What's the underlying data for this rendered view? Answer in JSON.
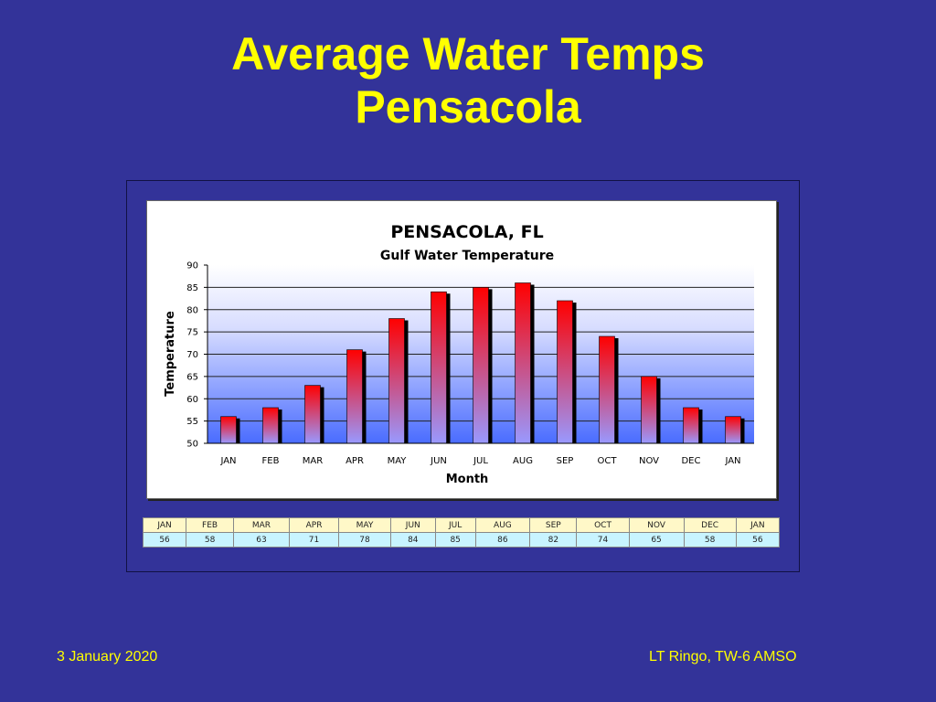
{
  "slide": {
    "title_line1": "Average Water Temps",
    "title_line2": "Pensacola",
    "footer_date": "3 January 2020",
    "footer_author": "LT Ringo, TW-6 AMSO"
  },
  "colors": {
    "background": "#333399",
    "title": "#ffff00",
    "bar_top": "#ff0000",
    "bar_bottom": "#9999ff",
    "table_header": "#fff8c8",
    "table_values": "#c8f4ff"
  },
  "chart_data": {
    "type": "bar",
    "title": "PENSACOLA, FL",
    "subtitle": "Gulf Water Temperature",
    "xlabel": "Month",
    "ylabel": "Temperature",
    "categories": [
      "JAN",
      "FEB",
      "MAR",
      "APR",
      "MAY",
      "JUN",
      "JUL",
      "AUG",
      "SEP",
      "OCT",
      "NOV",
      "DEC",
      "JAN"
    ],
    "values": [
      56,
      58,
      63,
      71,
      78,
      84,
      85,
      86,
      82,
      74,
      65,
      58,
      56
    ],
    "ylim": [
      50,
      90
    ],
    "yticks": [
      50,
      55,
      60,
      65,
      70,
      75,
      80,
      85,
      90
    ],
    "grid": true,
    "legend": "none"
  },
  "table": {
    "months": [
      "JAN",
      "FEB",
      "MAR",
      "APR",
      "MAY",
      "JUN",
      "JUL",
      "AUG",
      "SEP",
      "OCT",
      "NOV",
      "DEC",
      "JAN"
    ],
    "values": [
      "56",
      "58",
      "63",
      "71",
      "78",
      "84",
      "85",
      "86",
      "82",
      "74",
      "65",
      "58",
      "56"
    ]
  }
}
